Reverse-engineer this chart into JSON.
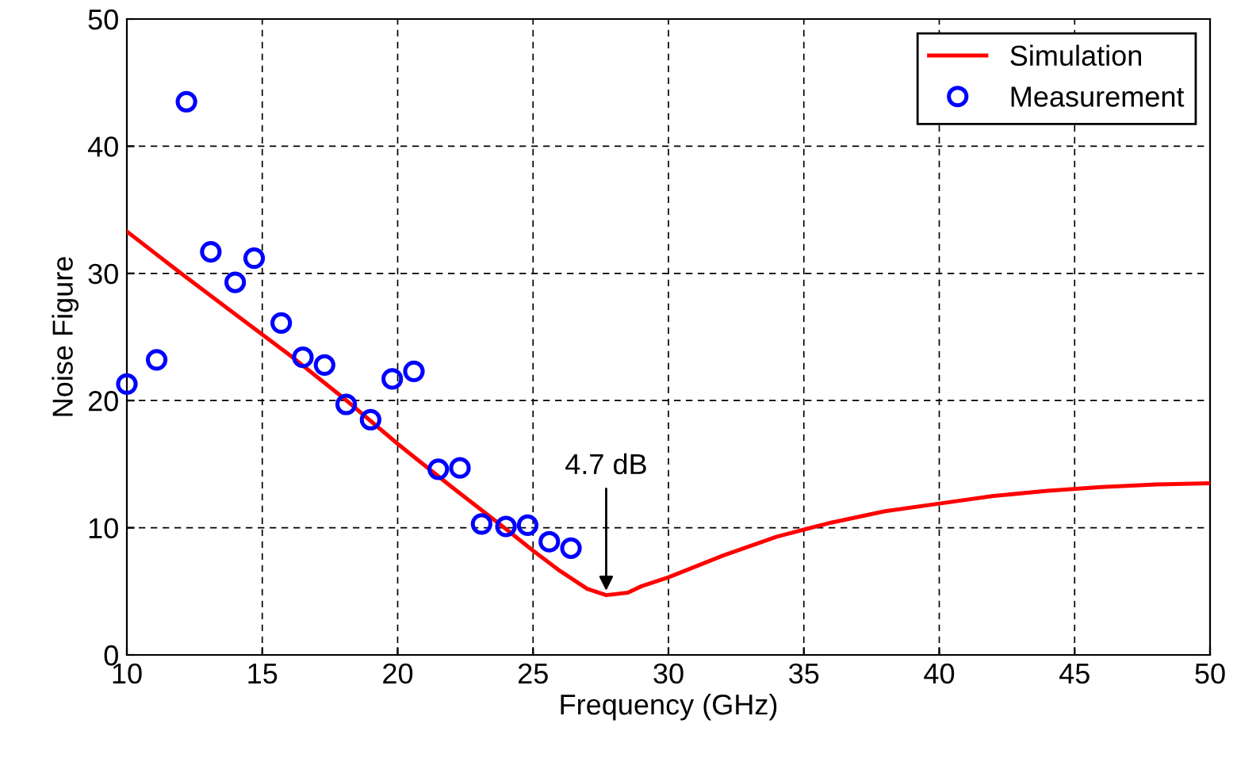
{
  "chart_data": {
    "type": "line",
    "xlabel": "Frequency (GHz)",
    "ylabel": "Noise Figure",
    "xlim": [
      10,
      50
    ],
    "xticks": [
      10,
      15,
      20,
      25,
      30,
      35,
      40,
      45,
      50
    ],
    "ylim": [
      0,
      50
    ],
    "yticks": [
      0,
      10,
      20,
      30,
      40,
      50
    ],
    "grid": true,
    "legend": "top right",
    "series": [
      {
        "name": "Simulation",
        "color": "#ff0000",
        "marker": "none",
        "line_style": "solid",
        "x": [
          10,
          12,
          14,
          16,
          18,
          20,
          22,
          24,
          25,
          26,
          27,
          27.7,
          28.5,
          29,
          30,
          32,
          34,
          36,
          38,
          40,
          42,
          44,
          46,
          48,
          50
        ],
        "values": [
          33.3,
          30.0,
          26.8,
          23.6,
          20.2,
          16.6,
          13.2,
          9.9,
          8.2,
          6.6,
          5.2,
          4.7,
          4.9,
          5.4,
          6.1,
          7.8,
          9.3,
          10.4,
          11.3,
          11.9,
          12.5,
          12.9,
          13.2,
          13.4,
          13.5
        ]
      },
      {
        "name": "Measurement",
        "type": "scatter",
        "color": "#0000ff",
        "marker": "circle",
        "x": [
          10.0,
          11.1,
          12.2,
          13.1,
          14.0,
          14.7,
          15.7,
          16.5,
          17.3,
          18.1,
          19.0,
          19.8,
          20.6,
          21.5,
          22.3,
          23.1,
          24.0,
          24.8,
          25.6,
          26.4
        ],
        "values": [
          21.3,
          23.2,
          43.5,
          31.7,
          29.3,
          31.2,
          26.1,
          23.4,
          22.8,
          19.7,
          18.5,
          21.7,
          22.3,
          14.6,
          14.7,
          10.3,
          10.1,
          10.2,
          8.9,
          8.4
        ]
      }
    ],
    "annotations": [
      {
        "text": "4.7 dB",
        "x": 27.7,
        "y": 4.7
      }
    ]
  }
}
